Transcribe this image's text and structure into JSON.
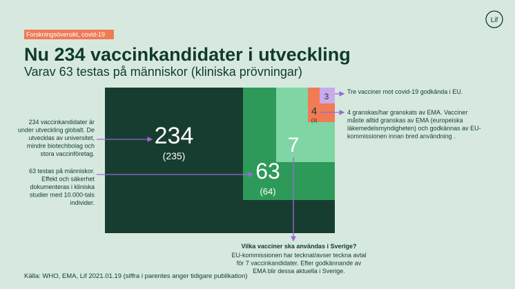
{
  "header": {
    "tag": "Forskningsöversikt, covid-19",
    "title": "Nu 234 vaccinkandidater i utveckling",
    "subtitle": "Varav 63 testas på människor (kliniska prövningar)",
    "logo": "Lif"
  },
  "boxes": [
    {
      "value": "234",
      "previous": "(235)"
    },
    {
      "value": "63",
      "previous": "(64)"
    },
    {
      "value": "7"
    },
    {
      "value": "4",
      "previous": "(3)"
    },
    {
      "value": "3"
    }
  ],
  "annotations": [
    {
      "lines": [
        "234 vaccinkandidater är",
        "under utveckling globalt. De",
        "utvecklas av universitet,",
        "mindre biotechbolag och",
        "stora vaccinföretag."
      ]
    },
    {
      "lines": [
        "63 testas på människor.",
        "Effekt och säkerhet",
        "dokumenteras i kliniska",
        "studier med 10.000-tals",
        "individer."
      ]
    },
    {
      "lines": [
        "Tre vacciner mot covid-19 godkända i EU."
      ]
    },
    {
      "lines": [
        "4 granskas/har granskats av EMA. Vacciner",
        "måste alltid granskas av EMA (europeiska",
        "läkemedelsmyndigheten) och godkännas av EU-",
        "kommissionen innan bred användning ."
      ]
    },
    {
      "heading": "Vilka vacciner ska användas i Sverige?",
      "lines": [
        "EU-kommissionen har tecknat/avser teckna avtal",
        "för 7 vaccinkandidater. Efter godkännande av",
        "EMA blir dessa aktuella i Sverige."
      ]
    }
  ],
  "source": "Källa: WHO, EMA, Lif 2021.01.19 (siffra i parentes anger tidigare publikation)"
}
